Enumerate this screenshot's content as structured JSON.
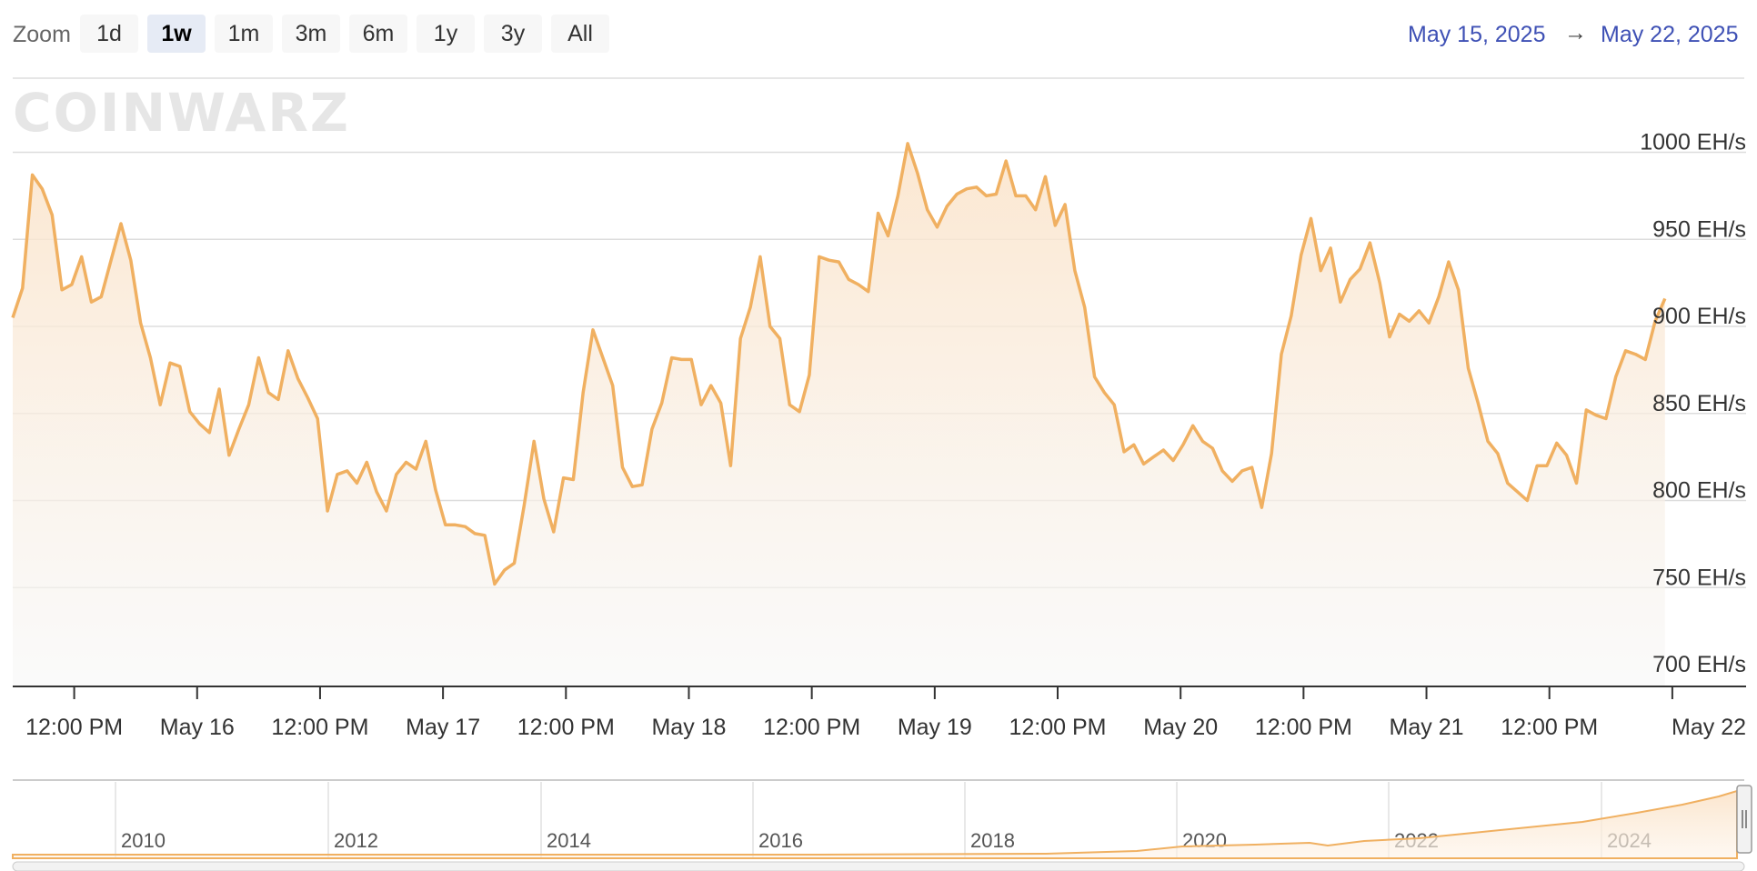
{
  "zoom": {
    "label": "Zoom",
    "buttons": [
      "1d",
      "1w",
      "1m",
      "3m",
      "6m",
      "1y",
      "3y",
      "All"
    ],
    "active": "1w"
  },
  "range": {
    "from": "May 15, 2025",
    "arrow": "→",
    "to": "May 22, 2025"
  },
  "watermark": "COINWARZ",
  "colors": {
    "line": "#f0b061",
    "fill": "#fbe9d5",
    "accent": "#3f51b5"
  },
  "chart_data": {
    "type": "area",
    "ylim": [
      700,
      1030
    ],
    "yticks": [
      {
        "value": 700,
        "label": "700 EH/s"
      },
      {
        "value": 750,
        "label": "750 EH/s"
      },
      {
        "value": 800,
        "label": "800 EH/s"
      },
      {
        "value": 850,
        "label": "850 EH/s"
      },
      {
        "value": 900,
        "label": "900 EH/s"
      },
      {
        "value": 950,
        "label": "950 EH/s"
      },
      {
        "value": 1000,
        "label": "1000 EH/s"
      }
    ],
    "xlim": [
      -0.75,
      6.3
    ],
    "xticks": [
      {
        "t": -0.5,
        "label": "12:00 PM"
      },
      {
        "t": 0,
        "label": "May 16"
      },
      {
        "t": 0.5,
        "label": "12:00 PM"
      },
      {
        "t": 1,
        "label": "May 17"
      },
      {
        "t": 1.5,
        "label": "12:00 PM"
      },
      {
        "t": 2,
        "label": "May 18"
      },
      {
        "t": 2.5,
        "label": "12:00 PM"
      },
      {
        "t": 3,
        "label": "May 19"
      },
      {
        "t": 3.5,
        "label": "12:00 PM"
      },
      {
        "t": 4,
        "label": "May 20"
      },
      {
        "t": 4.5,
        "label": "12:00 PM"
      },
      {
        "t": 5,
        "label": "May 21"
      },
      {
        "t": 5.5,
        "label": "12:00 PM"
      },
      {
        "t": 6,
        "label": "May 22"
      }
    ],
    "series": [
      {
        "points": [
          [
            -0.75,
            905
          ],
          [
            -0.71,
            922
          ],
          [
            -0.67,
            987
          ],
          [
            -0.63,
            979
          ],
          [
            -0.59,
            964
          ],
          [
            -0.55,
            921
          ],
          [
            -0.51,
            924
          ],
          [
            -0.47,
            940
          ],
          [
            -0.43,
            914
          ],
          [
            -0.39,
            917
          ],
          [
            -0.35,
            938
          ],
          [
            -0.31,
            959
          ],
          [
            -0.27,
            938
          ],
          [
            -0.23,
            902
          ],
          [
            -0.19,
            882
          ],
          [
            -0.15,
            855
          ],
          [
            -0.11,
            879
          ],
          [
            -0.07,
            877
          ],
          [
            -0.03,
            851
          ],
          [
            0.01,
            844
          ],
          [
            0.05,
            839
          ],
          [
            0.09,
            864
          ],
          [
            0.13,
            826
          ],
          [
            0.17,
            841
          ],
          [
            0.21,
            855
          ],
          [
            0.25,
            882
          ],
          [
            0.29,
            862
          ],
          [
            0.33,
            858
          ],
          [
            0.37,
            886
          ],
          [
            0.41,
            870
          ],
          [
            0.45,
            859
          ],
          [
            0.49,
            847
          ],
          [
            0.53,
            794
          ],
          [
            0.57,
            815
          ],
          [
            0.61,
            817
          ],
          [
            0.65,
            810
          ],
          [
            0.69,
            822
          ],
          [
            0.73,
            805
          ],
          [
            0.77,
            794
          ],
          [
            0.81,
            815
          ],
          [
            0.85,
            822
          ],
          [
            0.89,
            818
          ],
          [
            0.93,
            834
          ],
          [
            0.97,
            806
          ],
          [
            1.01,
            786
          ],
          [
            1.05,
            786
          ],
          [
            1.09,
            785
          ],
          [
            1.13,
            781
          ],
          [
            1.17,
            780
          ],
          [
            1.21,
            752
          ],
          [
            1.25,
            760
          ],
          [
            1.29,
            764
          ],
          [
            1.33,
            797
          ],
          [
            1.37,
            834
          ],
          [
            1.41,
            801
          ],
          [
            1.45,
            782
          ],
          [
            1.49,
            813
          ],
          [
            1.53,
            812
          ],
          [
            1.57,
            862
          ],
          [
            1.61,
            898
          ],
          [
            1.65,
            882
          ],
          [
            1.69,
            866
          ],
          [
            1.73,
            819
          ],
          [
            1.77,
            808
          ],
          [
            1.81,
            809
          ],
          [
            1.85,
            841
          ],
          [
            1.89,
            856
          ],
          [
            1.93,
            882
          ],
          [
            1.97,
            881
          ],
          [
            2.01,
            881
          ],
          [
            2.05,
            855
          ],
          [
            2.09,
            866
          ],
          [
            2.13,
            856
          ],
          [
            2.17,
            820
          ],
          [
            2.21,
            893
          ],
          [
            2.25,
            911
          ],
          [
            2.29,
            940
          ],
          [
            2.33,
            900
          ],
          [
            2.37,
            893
          ],
          [
            2.41,
            855
          ],
          [
            2.45,
            851
          ],
          [
            2.49,
            872
          ],
          [
            2.53,
            940
          ],
          [
            2.57,
            938
          ],
          [
            2.61,
            937
          ],
          [
            2.65,
            927
          ],
          [
            2.69,
            924
          ],
          [
            2.73,
            920
          ],
          [
            2.77,
            965
          ],
          [
            2.81,
            952
          ],
          [
            2.85,
            975
          ],
          [
            2.89,
            1005
          ],
          [
            2.93,
            988
          ],
          [
            2.97,
            967
          ],
          [
            3.01,
            957
          ],
          [
            3.05,
            969
          ],
          [
            3.09,
            976
          ],
          [
            3.13,
            979
          ],
          [
            3.17,
            980
          ],
          [
            3.21,
            975
          ],
          [
            3.25,
            976
          ],
          [
            3.29,
            995
          ],
          [
            3.33,
            975
          ],
          [
            3.37,
            975
          ],
          [
            3.41,
            967
          ],
          [
            3.45,
            986
          ],
          [
            3.49,
            958
          ],
          [
            3.53,
            970
          ],
          [
            3.57,
            932
          ],
          [
            3.61,
            911
          ],
          [
            3.65,
            871
          ],
          [
            3.69,
            862
          ],
          [
            3.73,
            855
          ],
          [
            3.77,
            828
          ],
          [
            3.81,
            832
          ],
          [
            3.85,
            821
          ],
          [
            3.89,
            825
          ],
          [
            3.93,
            829
          ],
          [
            3.97,
            823
          ],
          [
            4.01,
            832
          ],
          [
            4.05,
            843
          ],
          [
            4.09,
            834
          ],
          [
            4.13,
            830
          ],
          [
            4.17,
            817
          ],
          [
            4.21,
            811
          ],
          [
            4.25,
            817
          ],
          [
            4.29,
            819
          ],
          [
            4.33,
            796
          ],
          [
            4.37,
            827
          ],
          [
            4.41,
            884
          ],
          [
            4.45,
            906
          ],
          [
            4.49,
            941
          ],
          [
            4.53,
            962
          ],
          [
            4.57,
            932
          ],
          [
            4.61,
            945
          ],
          [
            4.65,
            914
          ],
          [
            4.69,
            927
          ],
          [
            4.73,
            933
          ],
          [
            4.77,
            948
          ],
          [
            4.81,
            925
          ],
          [
            4.85,
            894
          ],
          [
            4.89,
            907
          ],
          [
            4.93,
            903
          ],
          [
            4.97,
            909
          ],
          [
            5.01,
            902
          ],
          [
            5.05,
            917
          ],
          [
            5.09,
            937
          ],
          [
            5.13,
            921
          ],
          [
            5.17,
            876
          ],
          [
            5.21,
            856
          ],
          [
            5.25,
            834
          ],
          [
            5.29,
            827
          ],
          [
            5.33,
            810
          ],
          [
            5.37,
            805
          ],
          [
            5.41,
            800
          ],
          [
            5.45,
            820
          ],
          [
            5.49,
            820
          ],
          [
            5.53,
            833
          ],
          [
            5.57,
            826
          ],
          [
            5.61,
            810
          ],
          [
            5.65,
            852
          ],
          [
            5.69,
            849
          ],
          [
            5.73,
            847
          ],
          [
            5.77,
            871
          ],
          [
            5.81,
            886
          ],
          [
            5.85,
            884
          ],
          [
            5.89,
            881
          ],
          [
            5.93,
            903
          ],
          [
            5.97,
            916
          ]
        ]
      }
    ]
  },
  "navigator": {
    "year_labels": [
      "2010",
      "2012",
      "2014",
      "2016",
      "2018",
      "2020",
      "2022",
      "2024"
    ]
  }
}
